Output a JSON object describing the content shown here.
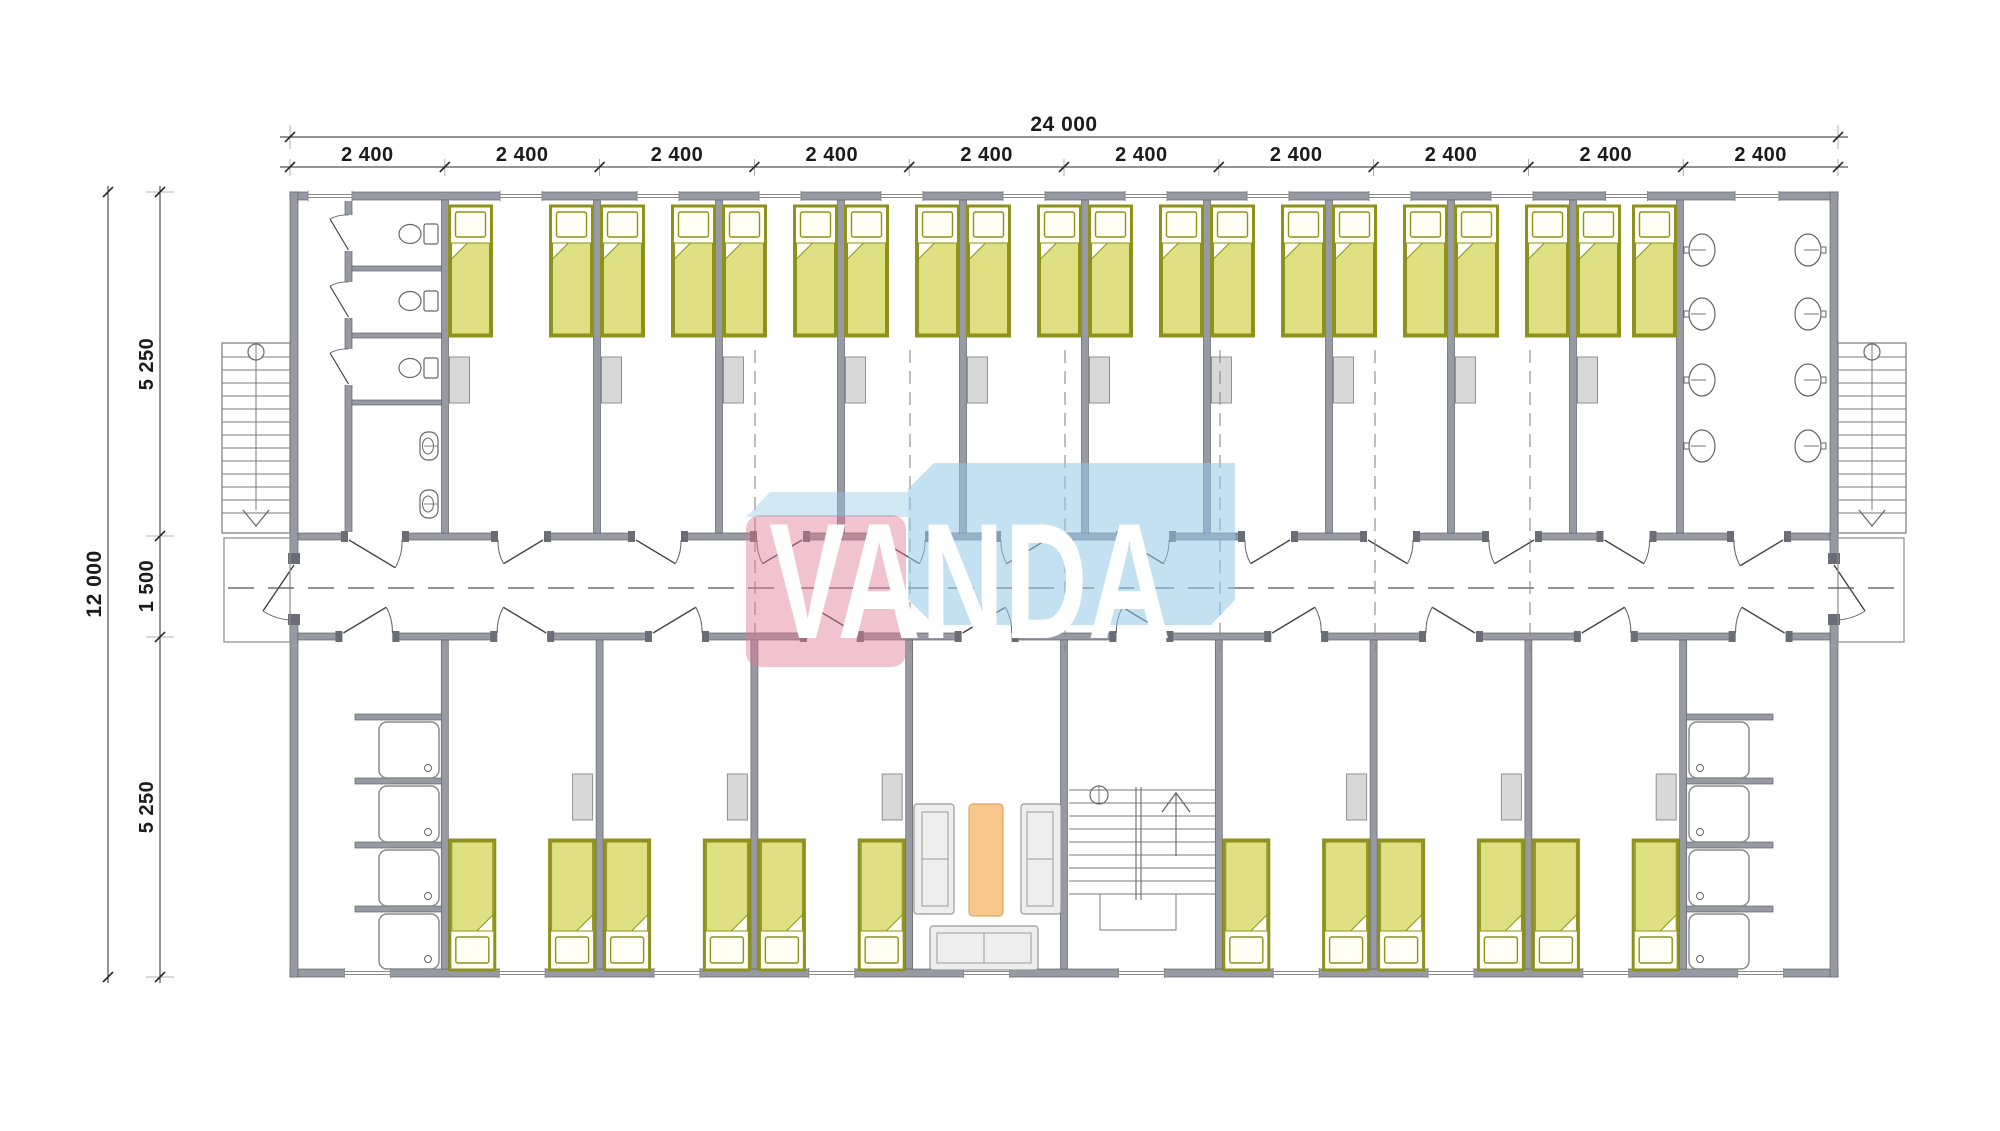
{
  "dimensions": {
    "top_total": "24 000",
    "top_segments": [
      "2 400",
      "2 400",
      "2 400",
      "2 400",
      "2 400",
      "2 400",
      "2 400",
      "2 400",
      "2 400",
      "2 400"
    ],
    "left_total": "12 000",
    "left_top": "5 250",
    "left_middle": "1 500",
    "left_bottom": "5 250"
  },
  "watermark": {
    "text": "VANDA"
  },
  "colors": {
    "wallFill": "#989aa3",
    "wallEdge": "#62646e",
    "jamb": "#6a6c76",
    "white": "#ffffff",
    "bedFill": "#dee082",
    "bedEdge": "#8e921c",
    "pillow": "#fffef4",
    "cabinet": "#d8d8d8",
    "cabinetEdge": "#909090",
    "fixture": "#666666",
    "sofa": "#eeeeee",
    "sofaEdge": "#999999",
    "table": "#f9c78c",
    "tableEdge": "#dfa763",
    "stair": "#787878",
    "thin": "#8a8a8a",
    "door": "#444444",
    "dim": "#2a2a2a",
    "guide": "#9a9a9a",
    "axis": "#888888",
    "wmPink": "rgba(224,122,149,0.45)",
    "wmBlue": "rgba(148,201,232,0.55)",
    "wmBlueTop": "rgba(148,201,232,0.42)"
  },
  "inventory": {
    "building_modules": 10,
    "rooms_top": [
      "entry-wc",
      "bedroom",
      "bedroom",
      "bedroom",
      "bedroom",
      "bedroom",
      "bedroom",
      "bedroom",
      "bedroom",
      "bedroom",
      "bedroom",
      "washbasin-room"
    ],
    "rooms_bottom": [
      "shower-room",
      "bedroom",
      "bedroom",
      "bedroom",
      "lounge",
      "staircase",
      "bedroom",
      "bedroom",
      "bedroom",
      "shower-room"
    ],
    "beds": 32,
    "wardrobes": 16,
    "toilets": 3,
    "urinals": 2,
    "washbasins": 8,
    "shower_trays": 8,
    "sofas": 3,
    "coffee_tables": 1,
    "exterior_staircases": 2,
    "internal_staircases": 1,
    "entry_doors": 2
  }
}
